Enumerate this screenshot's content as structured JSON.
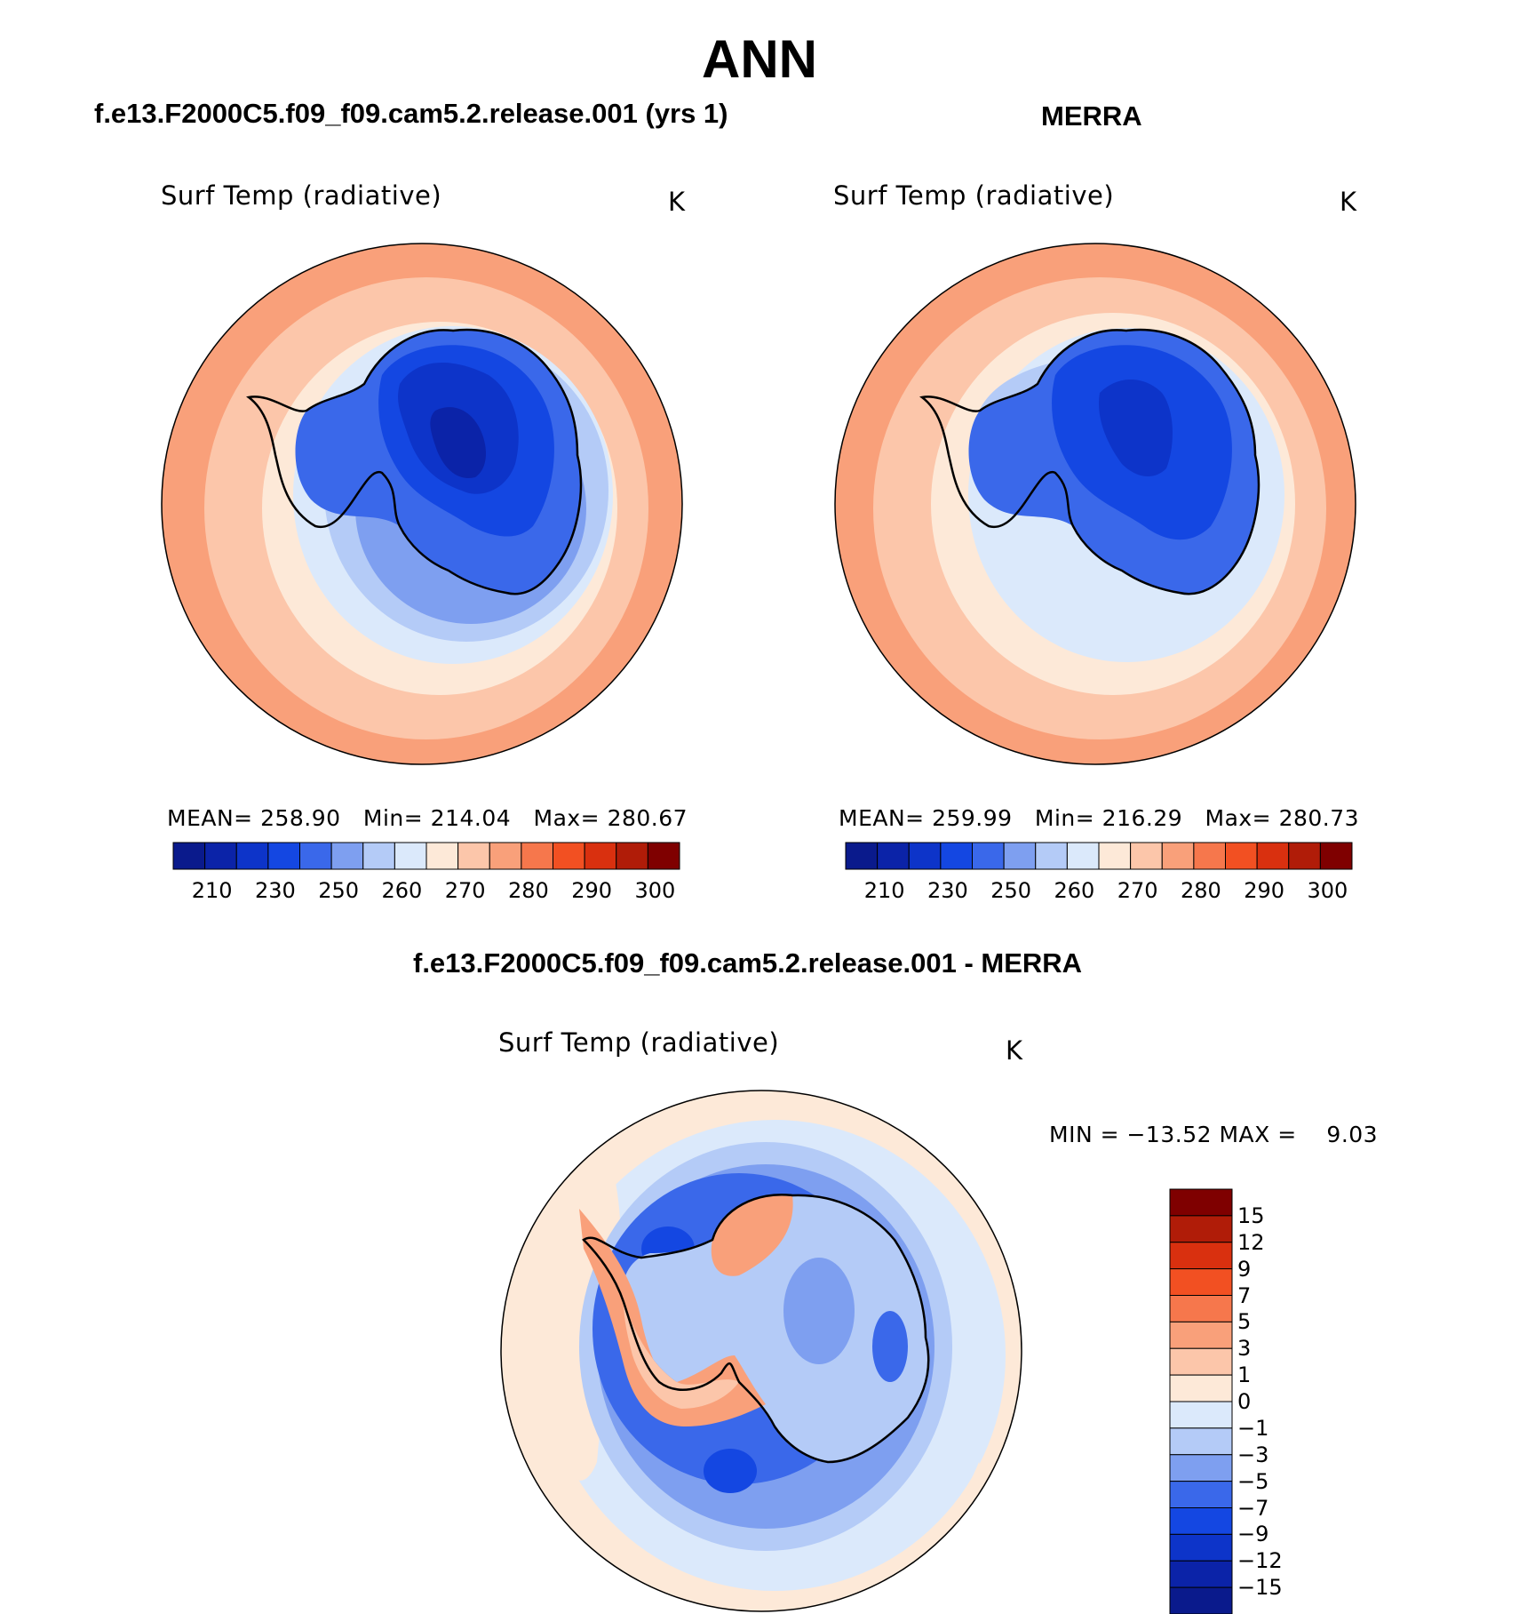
{
  "title": "ANN",
  "panels": [
    {
      "title": "f.e13.F2000C5.f09_f09.cam5.2.release.001 (yrs 1)",
      "variable": "Surf Temp (radiative)",
      "units": "K",
      "stats": {
        "mean_label": "MEAN=",
        "mean": "258.90",
        "min_label": "Min=",
        "min": "214.04",
        "max_label": "Max=",
        "max": "280.67"
      },
      "colorbar": {
        "colors": [
          "#0a1a8c",
          "#0b23a8",
          "#0d34c9",
          "#1447e2",
          "#3a68ea",
          "#7e9ff0",
          "#b4cbf7",
          "#dbe9fb",
          "#fde9d8",
          "#fcc6aa",
          "#f9a07a",
          "#f6774c",
          "#f25022",
          "#d9300f",
          "#b01c08",
          "#7f0000"
        ],
        "tick_labels": [
          "210",
          "230",
          "250",
          "260",
          "270",
          "280",
          "290",
          "300"
        ]
      }
    },
    {
      "title": "MERRA",
      "variable": "Surf Temp (radiative)",
      "units": "K",
      "stats": {
        "mean_label": "MEAN=",
        "mean": "259.99",
        "min_label": "Min=",
        "min": "216.29",
        "max_label": "Max=",
        "max": "280.73"
      },
      "colorbar": {
        "colors": [
          "#0a1a8c",
          "#0b23a8",
          "#0d34c9",
          "#1447e2",
          "#3a68ea",
          "#7e9ff0",
          "#b4cbf7",
          "#dbe9fb",
          "#fde9d8",
          "#fcc6aa",
          "#f9a07a",
          "#f6774c",
          "#f25022",
          "#d9300f",
          "#b01c08",
          "#7f0000"
        ],
        "tick_labels": [
          "210",
          "230",
          "250",
          "260",
          "270",
          "280",
          "290",
          "300"
        ]
      }
    }
  ],
  "diff_panel": {
    "title": "f.e13.F2000C5.f09_f09.cam5.2.release.001 - MERRA",
    "variable": "Surf Temp (radiative)",
    "units": "K",
    "minmax_text": "MIN = −13.52 MAX =    9.03",
    "colorbar": {
      "colors_top_to_bottom": [
        "#7f0000",
        "#b01c08",
        "#d9300f",
        "#f25022",
        "#f6774c",
        "#f9a07a",
        "#fcc6aa",
        "#fde9d8",
        "#dbe9fb",
        "#b4cbf7",
        "#7e9ff0",
        "#3a68ea",
        "#1447e2",
        "#0d34c9",
        "#0b23a8",
        "#0a1a8c"
      ],
      "tick_labels": [
        "15",
        "12",
        "9",
        "7",
        "5",
        "3",
        "1",
        "0",
        "−1",
        "−3",
        "−5",
        "−7",
        "−9",
        "−12",
        "−15"
      ]
    }
  }
}
